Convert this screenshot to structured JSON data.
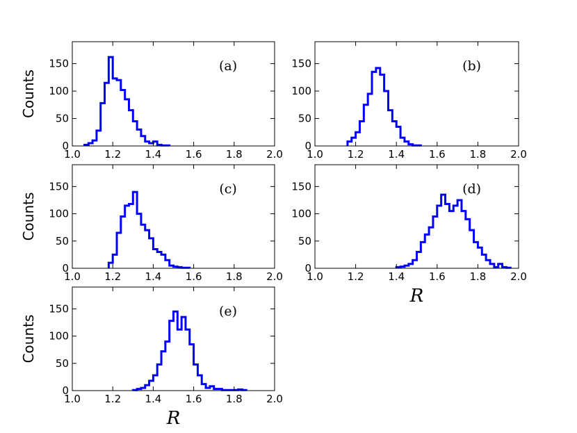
{
  "chart_data": [
    {
      "type": "histogram",
      "panel_label": "(a)",
      "ylabel": "Counts",
      "xlabel": "",
      "xlim": [
        1.0,
        2.0
      ],
      "ylim": [
        0,
        190
      ],
      "xticks": [
        "1.0",
        "1.2",
        "1.4",
        "1.6",
        "1.8",
        "2.0"
      ],
      "yticks": [
        "0",
        "50",
        "100",
        "150"
      ],
      "bin_edges": [
        1.06,
        1.08,
        1.1,
        1.12,
        1.14,
        1.16,
        1.18,
        1.2,
        1.22,
        1.24,
        1.26,
        1.28,
        1.3,
        1.32,
        1.34,
        1.36,
        1.38,
        1.4,
        1.42,
        1.44,
        1.46,
        1.48
      ],
      "counts": [
        2,
        5,
        10,
        28,
        78,
        115,
        162,
        123,
        120,
        102,
        85,
        65,
        45,
        30,
        18,
        8,
        5,
        8,
        2,
        1,
        1
      ],
      "color": "#0000ff"
    },
    {
      "type": "histogram",
      "panel_label": "(b)",
      "ylabel": "",
      "xlabel": "",
      "xlim": [
        1.0,
        2.0
      ],
      "ylim": [
        0,
        190
      ],
      "xticks": [
        "1.0",
        "1.2",
        "1.4",
        "1.6",
        "1.8",
        "2.0"
      ],
      "yticks": [
        "0",
        "50",
        "100",
        "150"
      ],
      "bin_edges": [
        1.16,
        1.18,
        1.2,
        1.22,
        1.24,
        1.26,
        1.28,
        1.3,
        1.32,
        1.34,
        1.36,
        1.38,
        1.4,
        1.42,
        1.44,
        1.46,
        1.48,
        1.5,
        1.52
      ],
      "counts": [
        8,
        15,
        25,
        45,
        75,
        95,
        135,
        142,
        130,
        100,
        65,
        45,
        35,
        15,
        8,
        3,
        1,
        1
      ],
      "color": "#0000ff"
    },
    {
      "type": "histogram",
      "panel_label": "(c)",
      "ylabel": "Counts",
      "xlabel": "",
      "xlim": [
        1.0,
        2.0
      ],
      "ylim": [
        0,
        190
      ],
      "xticks": [
        "1.0",
        "1.2",
        "1.4",
        "1.6",
        "1.8",
        "2.0"
      ],
      "yticks": [
        "0",
        "50",
        "100",
        "150"
      ],
      "bin_edges": [
        1.18,
        1.2,
        1.22,
        1.24,
        1.26,
        1.28,
        1.3,
        1.32,
        1.34,
        1.36,
        1.38,
        1.4,
        1.42,
        1.44,
        1.46,
        1.48,
        1.5,
        1.52,
        1.54,
        1.56,
        1.58
      ],
      "counts": [
        10,
        25,
        65,
        95,
        115,
        118,
        140,
        100,
        80,
        70,
        55,
        35,
        30,
        25,
        15,
        5,
        3,
        2,
        1,
        1
      ],
      "color": "#0000ff"
    },
    {
      "type": "histogram",
      "panel_label": "(d)",
      "ylabel": "",
      "xlabel": "R",
      "xlim": [
        1.0,
        2.0
      ],
      "ylim": [
        0,
        190
      ],
      "xticks": [
        "1.0",
        "1.2",
        "1.4",
        "1.6",
        "1.8",
        "2.0"
      ],
      "yticks": [
        "0",
        "50",
        "100",
        "150"
      ],
      "bin_edges": [
        1.4,
        1.42,
        1.44,
        1.46,
        1.48,
        1.5,
        1.52,
        1.54,
        1.56,
        1.58,
        1.6,
        1.62,
        1.64,
        1.66,
        1.68,
        1.7,
        1.72,
        1.74,
        1.76,
        1.78,
        1.8,
        1.82,
        1.84,
        1.86,
        1.88,
        1.9,
        1.92,
        1.94,
        1.96
      ],
      "counts": [
        2,
        3,
        5,
        8,
        15,
        30,
        48,
        62,
        75,
        95,
        115,
        135,
        118,
        105,
        115,
        125,
        105,
        90,
        70,
        48,
        38,
        25,
        15,
        8,
        2,
        8,
        2,
        1
      ],
      "color": "#0000ff"
    },
    {
      "type": "histogram",
      "panel_label": "(e)",
      "ylabel": "Counts",
      "xlabel": "R",
      "xlim": [
        1.0,
        2.0
      ],
      "ylim": [
        0,
        190
      ],
      "xticks": [
        "1.0",
        "1.2",
        "1.4",
        "1.6",
        "1.8",
        "2.0"
      ],
      "yticks": [
        "0",
        "50",
        "100",
        "150"
      ],
      "bin_edges": [
        1.3,
        1.32,
        1.34,
        1.36,
        1.38,
        1.4,
        1.42,
        1.44,
        1.46,
        1.48,
        1.5,
        1.52,
        1.54,
        1.56,
        1.58,
        1.6,
        1.62,
        1.64,
        1.66,
        1.68,
        1.7,
        1.72,
        1.74,
        1.76,
        1.78,
        1.8,
        1.82,
        1.84,
        1.86
      ],
      "counts": [
        1,
        3,
        5,
        10,
        18,
        28,
        48,
        72,
        90,
        128,
        145,
        112,
        135,
        112,
        85,
        48,
        28,
        12,
        5,
        8,
        3,
        3,
        1,
        1,
        1,
        1,
        2,
        1
      ],
      "color": "#0000ff"
    }
  ]
}
